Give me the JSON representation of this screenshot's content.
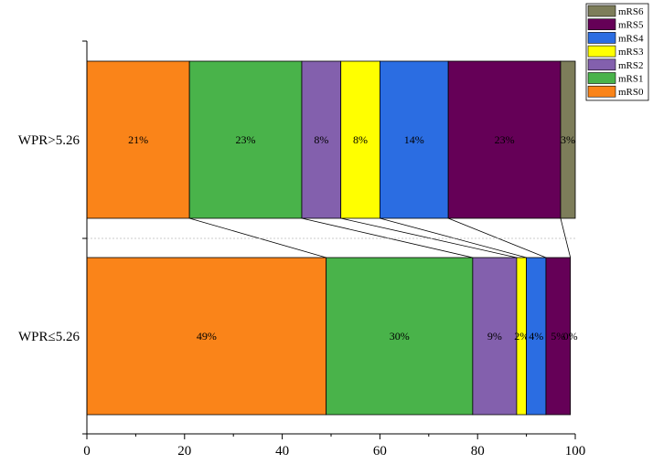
{
  "chart_data": {
    "type": "bar",
    "orientation": "horizontal",
    "stacked": true,
    "title": "",
    "xlabel": "",
    "ylabel": "",
    "xlim": [
      0,
      100
    ],
    "x_ticks": [
      0,
      20,
      40,
      60,
      80,
      100
    ],
    "grid": false,
    "legend_position": "top-right",
    "categories": [
      "WPR>5.26",
      "WPR≤5.26"
    ],
    "series": [
      {
        "name": "mRS0",
        "color": "#fa8419",
        "values": [
          21,
          49
        ],
        "labels": [
          "21%",
          "49%"
        ]
      },
      {
        "name": "mRS1",
        "color": "#49b34a",
        "values": [
          23,
          30
        ],
        "labels": [
          "23%",
          "30%"
        ]
      },
      {
        "name": "mRS2",
        "color": "#8360ad",
        "values": [
          8,
          9
        ],
        "labels": [
          "8%",
          "9%"
        ]
      },
      {
        "name": "mRS3",
        "color": "#ffff00",
        "values": [
          8,
          2
        ],
        "labels": [
          "8%",
          "2%"
        ]
      },
      {
        "name": "mRS4",
        "color": "#2b6de2",
        "values": [
          14,
          4
        ],
        "labels": [
          "14%",
          "4%"
        ]
      },
      {
        "name": "mRS5",
        "color": "#650057",
        "values": [
          23,
          5
        ],
        "labels": [
          "23%",
          "5%"
        ]
      },
      {
        "name": "mRS6",
        "color": "#7d7d5a",
        "values": [
          3,
          0
        ],
        "labels": [
          "3%",
          "0%"
        ]
      }
    ]
  }
}
